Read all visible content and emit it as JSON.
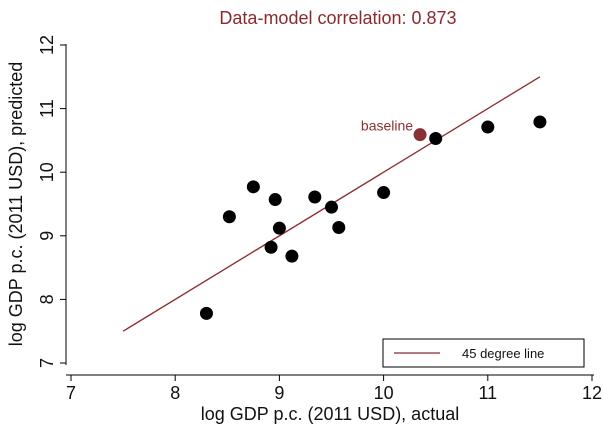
{
  "colors": {
    "accent": "#8b2a2e",
    "points": "#000000",
    "highlight": "#8b3034",
    "background": "#ffffff"
  },
  "chart_data": {
    "type": "scatter",
    "title": "Data-model correlation: 0.873",
    "xlabel": "log GDP p.c. (2011 USD), actual",
    "ylabel": "log GDP p.c. (2011 USD), predicted",
    "xlim": [
      7,
      12
    ],
    "ylim": [
      7,
      12
    ],
    "xticks": [
      "7",
      "8",
      "9",
      "10",
      "11",
      "12"
    ],
    "yticks": [
      "7",
      "8",
      "9",
      "10",
      "11",
      "12"
    ],
    "grid": false,
    "points": [
      {
        "x": 8.3,
        "y": 7.78
      },
      {
        "x": 8.52,
        "y": 9.3
      },
      {
        "x": 8.75,
        "y": 9.77
      },
      {
        "x": 8.92,
        "y": 8.82
      },
      {
        "x": 8.96,
        "y": 9.57
      },
      {
        "x": 9.0,
        "y": 9.12
      },
      {
        "x": 9.12,
        "y": 8.68
      },
      {
        "x": 9.34,
        "y": 9.61
      },
      {
        "x": 9.5,
        "y": 9.45
      },
      {
        "x": 9.57,
        "y": 9.13
      },
      {
        "x": 10.0,
        "y": 9.68
      },
      {
        "x": 10.5,
        "y": 10.53
      },
      {
        "x": 11.0,
        "y": 10.71
      },
      {
        "x": 11.5,
        "y": 10.79
      }
    ],
    "highlight": {
      "label": "baseline",
      "x": 10.35,
      "y": 10.59
    },
    "reference_line": {
      "name": "45 degree line",
      "from": [
        7.5,
        7.5
      ],
      "to": [
        11.5,
        11.5
      ]
    },
    "legend": {
      "position": "bottom-right",
      "entries": [
        "45 degree line"
      ]
    }
  }
}
